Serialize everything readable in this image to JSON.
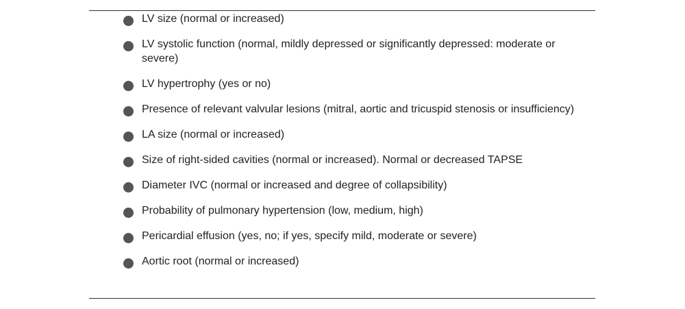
{
  "colors": {
    "bullet": "#555555",
    "text": "#222222",
    "rule": "#333333"
  },
  "items": [
    {
      "icon": "bullet-icon",
      "text": "LV size (normal or increased)"
    },
    {
      "icon": "bullet-icon",
      "text": "LV systolic function (normal, mildly depressed or significantly depressed: moderate or severe)"
    },
    {
      "icon": "bullet-icon",
      "text": "LV hypertrophy (yes or no)"
    },
    {
      "icon": "bullet-icon",
      "text": "Presence of relevant valvular lesions (mitral, aortic and tricuspid stenosis or insufficiency)"
    },
    {
      "icon": "bullet-icon",
      "text": "LA size (normal or increased)"
    },
    {
      "icon": "bullet-icon",
      "text": "Size of right-sided cavities (normal or increased). Normal or decreased TAPSE"
    },
    {
      "icon": "bullet-icon",
      "text": "Diameter IVC (normal or increased and degree of collapsibility)"
    },
    {
      "icon": "bullet-icon",
      "text": "Probability of pulmonary hypertension (low, medium, high)"
    },
    {
      "icon": "bullet-icon",
      "text": "Pericardial effusion (yes, no; if yes, specify mild, moderate or severe)"
    },
    {
      "icon": "bullet-icon",
      "text": "Aortic root (normal or increased)"
    }
  ]
}
